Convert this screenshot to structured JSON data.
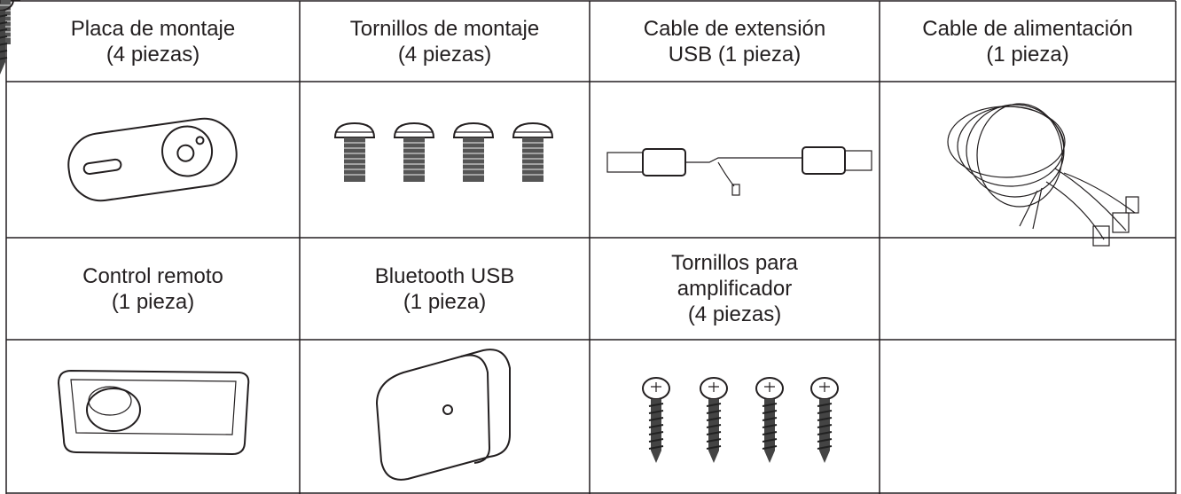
{
  "table": {
    "rows": [
      [
        [
          "Placa de montaje",
          "(4 piezas)"
        ],
        [
          "Tornillos de montaje",
          "(4 piezas)"
        ],
        [
          "Cable de extensión",
          "USB (1 pieza)"
        ],
        [
          "Cable de alimentación",
          "(1 pieza)"
        ]
      ],
      [
        [
          "Control remoto",
          "(1 pieza)"
        ],
        [
          "Bluetooth USB",
          "(1 pieza)"
        ],
        [
          "Tornillos para",
          "amplificador",
          "(4 piezas)"
        ]
      ]
    ]
  }
}
